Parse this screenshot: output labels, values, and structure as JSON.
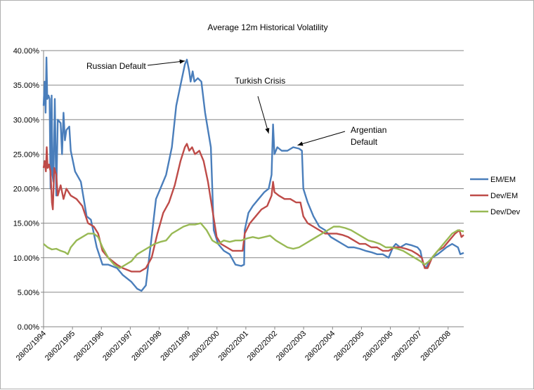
{
  "chart_data": {
    "type": "line",
    "title": "Average 12m Historical Volatility",
    "xlabel": "",
    "ylabel": "",
    "ylim": [
      0,
      40
    ],
    "yticks": [
      "0.00%",
      "5.00%",
      "10.00%",
      "15.00%",
      "20.00%",
      "25.00%",
      "30.00%",
      "35.00%",
      "40.00%"
    ],
    "xticks": [
      "28/02/1994",
      "28/02/1995",
      "28/02/1996",
      "28/02/1997",
      "28/02/1998",
      "28/02/1999",
      "28/02/2000",
      "28/02/2001",
      "28/02/2002",
      "28/02/2003",
      "28/02/2004",
      "28/02/2005",
      "28/02/2006",
      "28/02/2007",
      "28/02/2008"
    ],
    "x_range": [
      1994.16,
      2008.7
    ],
    "grid": "horizontal",
    "legend_position": "right",
    "series": [
      {
        "name": "EM/EM",
        "color": "#4a7ebb",
        "points": [
          [
            1994.16,
            32.0
          ],
          [
            1994.2,
            35.5
          ],
          [
            1994.23,
            31.0
          ],
          [
            1994.26,
            39.0
          ],
          [
            1994.29,
            33.0
          ],
          [
            1994.33,
            33.5
          ],
          [
            1994.37,
            33.0
          ],
          [
            1994.4,
            20.0
          ],
          [
            1994.44,
            33.5
          ],
          [
            1994.47,
            22.0
          ],
          [
            1994.5,
            21.0
          ],
          [
            1994.55,
            33.0
          ],
          [
            1994.6,
            19.0
          ],
          [
            1994.65,
            30.0
          ],
          [
            1994.75,
            29.5
          ],
          [
            1994.8,
            25.0
          ],
          [
            1994.85,
            31.0
          ],
          [
            1994.9,
            27.0
          ],
          [
            1994.95,
            28.5
          ],
          [
            1995.05,
            29.0
          ],
          [
            1995.1,
            25.5
          ],
          [
            1995.25,
            22.5
          ],
          [
            1995.45,
            21.0
          ],
          [
            1995.65,
            16.0
          ],
          [
            1995.8,
            15.5
          ],
          [
            1996.0,
            11.5
          ],
          [
            1996.2,
            9.0
          ],
          [
            1996.4,
            9.0
          ],
          [
            1996.7,
            8.5
          ],
          [
            1996.9,
            7.5
          ],
          [
            1997.2,
            6.5
          ],
          [
            1997.4,
            5.5
          ],
          [
            1997.55,
            5.2
          ],
          [
            1997.7,
            6.0
          ],
          [
            1997.9,
            13.0
          ],
          [
            1998.05,
            18.5
          ],
          [
            1998.2,
            20.0
          ],
          [
            1998.4,
            22.0
          ],
          [
            1998.6,
            26.0
          ],
          [
            1998.75,
            32.0
          ],
          [
            1998.9,
            35.0
          ],
          [
            1999.05,
            38.0
          ],
          [
            1999.12,
            38.7
          ],
          [
            1999.2,
            37.0
          ],
          [
            1999.25,
            35.5
          ],
          [
            1999.32,
            37.0
          ],
          [
            1999.38,
            35.5
          ],
          [
            1999.5,
            36.0
          ],
          [
            1999.62,
            35.5
          ],
          [
            1999.75,
            31.0
          ],
          [
            1999.95,
            26.0
          ],
          [
            2000.05,
            14.0
          ],
          [
            2000.2,
            12.0
          ],
          [
            2000.4,
            11.0
          ],
          [
            2000.6,
            10.5
          ],
          [
            2000.8,
            9.0
          ],
          [
            2001.0,
            8.8
          ],
          [
            2001.1,
            9.0
          ],
          [
            2001.12,
            14.0
          ],
          [
            2001.25,
            16.5
          ],
          [
            2001.4,
            17.5
          ],
          [
            2001.6,
            18.5
          ],
          [
            2001.8,
            19.5
          ],
          [
            2001.95,
            20.0
          ],
          [
            2002.05,
            22.0
          ],
          [
            2002.1,
            29.3
          ],
          [
            2002.15,
            25.0
          ],
          [
            2002.25,
            26.0
          ],
          [
            2002.4,
            25.5
          ],
          [
            2002.6,
            25.5
          ],
          [
            2002.8,
            26.0
          ],
          [
            2003.0,
            25.8
          ],
          [
            2003.1,
            25.5
          ],
          [
            2003.15,
            20.0
          ],
          [
            2003.3,
            18.0
          ],
          [
            2003.5,
            16.0
          ],
          [
            2003.7,
            14.5
          ],
          [
            2003.9,
            14.0
          ],
          [
            2004.1,
            13.0
          ],
          [
            2004.3,
            12.5
          ],
          [
            2004.5,
            12.0
          ],
          [
            2004.7,
            11.5
          ],
          [
            2004.9,
            11.5
          ],
          [
            2005.1,
            11.3
          ],
          [
            2005.3,
            11.0
          ],
          [
            2005.5,
            10.8
          ],
          [
            2005.7,
            10.5
          ],
          [
            2005.9,
            10.5
          ],
          [
            2006.1,
            10.0
          ],
          [
            2006.25,
            11.5
          ],
          [
            2006.35,
            12.0
          ],
          [
            2006.5,
            11.5
          ],
          [
            2006.7,
            12.0
          ],
          [
            2006.9,
            11.8
          ],
          [
            2007.1,
            11.5
          ],
          [
            2007.2,
            11.0
          ],
          [
            2007.3,
            9.0
          ],
          [
            2007.4,
            8.5
          ],
          [
            2007.5,
            9.5
          ],
          [
            2007.6,
            10.0
          ],
          [
            2007.8,
            10.5
          ],
          [
            2007.95,
            11.0
          ],
          [
            2008.1,
            11.5
          ],
          [
            2008.3,
            12.0
          ],
          [
            2008.5,
            11.5
          ],
          [
            2008.58,
            10.5
          ],
          [
            2008.7,
            10.7
          ]
        ]
      },
      {
        "name": "Dev/EM",
        "color": "#be4b48",
        "points": [
          [
            1994.16,
            23.0
          ],
          [
            1994.2,
            24.0
          ],
          [
            1994.24,
            22.5
          ],
          [
            1994.27,
            26.0
          ],
          [
            1994.3,
            23.0
          ],
          [
            1994.35,
            23.5
          ],
          [
            1994.4,
            22.5
          ],
          [
            1994.45,
            18.0
          ],
          [
            1994.48,
            17.0
          ],
          [
            1994.53,
            23.0
          ],
          [
            1994.6,
            22.0
          ],
          [
            1994.65,
            19.0
          ],
          [
            1994.75,
            20.5
          ],
          [
            1994.85,
            18.5
          ],
          [
            1994.95,
            20.0
          ],
          [
            1995.1,
            19.0
          ],
          [
            1995.3,
            18.5
          ],
          [
            1995.5,
            17.5
          ],
          [
            1995.7,
            15.0
          ],
          [
            1995.9,
            14.5
          ],
          [
            1996.05,
            13.5
          ],
          [
            1996.2,
            11.0
          ],
          [
            1996.4,
            10.0
          ],
          [
            1996.7,
            9.0
          ],
          [
            1996.9,
            8.5
          ],
          [
            1997.2,
            8.0
          ],
          [
            1997.5,
            8.0
          ],
          [
            1997.7,
            8.5
          ],
          [
            1997.9,
            10.0
          ],
          [
            1998.1,
            13.5
          ],
          [
            1998.3,
            16.5
          ],
          [
            1998.5,
            18.0
          ],
          [
            1998.7,
            20.5
          ],
          [
            1998.9,
            24.0
          ],
          [
            1999.05,
            26.0
          ],
          [
            1999.12,
            26.5
          ],
          [
            1999.2,
            25.5
          ],
          [
            1999.3,
            26.0
          ],
          [
            1999.4,
            25.0
          ],
          [
            1999.55,
            25.5
          ],
          [
            1999.7,
            24.0
          ],
          [
            1999.85,
            21.0
          ],
          [
            2000.0,
            17.0
          ],
          [
            2000.15,
            13.0
          ],
          [
            2000.3,
            12.0
          ],
          [
            2000.5,
            11.5
          ],
          [
            2000.7,
            11.0
          ],
          [
            2000.9,
            11.0
          ],
          [
            2001.05,
            11.0
          ],
          [
            2001.12,
            13.5
          ],
          [
            2001.3,
            15.0
          ],
          [
            2001.5,
            16.0
          ],
          [
            2001.7,
            17.0
          ],
          [
            2001.9,
            17.5
          ],
          [
            2002.05,
            19.0
          ],
          [
            2002.1,
            21.0
          ],
          [
            2002.15,
            19.5
          ],
          [
            2002.3,
            19.0
          ],
          [
            2002.5,
            18.5
          ],
          [
            2002.7,
            18.5
          ],
          [
            2002.9,
            18.0
          ],
          [
            2003.05,
            18.0
          ],
          [
            2003.15,
            16.0
          ],
          [
            2003.3,
            15.0
          ],
          [
            2003.5,
            14.5
          ],
          [
            2003.7,
            14.0
          ],
          [
            2003.9,
            13.5
          ],
          [
            2004.1,
            13.5
          ],
          [
            2004.3,
            13.5
          ],
          [
            2004.5,
            13.3
          ],
          [
            2004.7,
            13.0
          ],
          [
            2004.9,
            12.5
          ],
          [
            2005.1,
            12.0
          ],
          [
            2005.3,
            12.0
          ],
          [
            2005.5,
            11.5
          ],
          [
            2005.7,
            11.5
          ],
          [
            2005.9,
            11.0
          ],
          [
            2006.1,
            11.0
          ],
          [
            2006.3,
            11.5
          ],
          [
            2006.5,
            11.5
          ],
          [
            2006.7,
            11.3
          ],
          [
            2006.9,
            11.0
          ],
          [
            2007.1,
            10.5
          ],
          [
            2007.25,
            10.0
          ],
          [
            2007.35,
            8.5
          ],
          [
            2007.45,
            8.5
          ],
          [
            2007.6,
            10.0
          ],
          [
            2007.8,
            11.0
          ],
          [
            2008.0,
            11.5
          ],
          [
            2008.2,
            12.5
          ],
          [
            2008.4,
            13.5
          ],
          [
            2008.55,
            14.0
          ],
          [
            2008.62,
            13.0
          ],
          [
            2008.7,
            13.3
          ]
        ]
      },
      {
        "name": "Dev/Dev",
        "color": "#98b954",
        "points": [
          [
            1994.16,
            12.0
          ],
          [
            1994.3,
            11.5
          ],
          [
            1994.45,
            11.2
          ],
          [
            1994.6,
            11.3
          ],
          [
            1994.75,
            11.0
          ],
          [
            1994.9,
            10.8
          ],
          [
            1995.0,
            10.5
          ],
          [
            1995.1,
            11.5
          ],
          [
            1995.3,
            12.5
          ],
          [
            1995.5,
            13.0
          ],
          [
            1995.7,
            13.5
          ],
          [
            1995.9,
            13.5
          ],
          [
            1996.05,
            13.0
          ],
          [
            1996.2,
            11.5
          ],
          [
            1996.4,
            10.0
          ],
          [
            1996.6,
            9.0
          ],
          [
            1996.8,
            8.5
          ],
          [
            1997.0,
            9.0
          ],
          [
            1997.2,
            9.5
          ],
          [
            1997.4,
            10.5
          ],
          [
            1997.6,
            11.0
          ],
          [
            1997.8,
            11.5
          ],
          [
            1998.0,
            12.0
          ],
          [
            1998.2,
            12.3
          ],
          [
            1998.4,
            12.5
          ],
          [
            1998.6,
            13.5
          ],
          [
            1998.8,
            14.0
          ],
          [
            1999.0,
            14.5
          ],
          [
            1999.2,
            14.8
          ],
          [
            1999.4,
            14.8
          ],
          [
            1999.6,
            15.0
          ],
          [
            1999.8,
            14.0
          ],
          [
            2000.0,
            12.5
          ],
          [
            2000.2,
            12.0
          ],
          [
            2000.4,
            12.5
          ],
          [
            2000.6,
            12.3
          ],
          [
            2000.8,
            12.5
          ],
          [
            2001.0,
            12.5
          ],
          [
            2001.2,
            12.8
          ],
          [
            2001.4,
            13.0
          ],
          [
            2001.6,
            12.8
          ],
          [
            2001.8,
            13.0
          ],
          [
            2002.0,
            13.2
          ],
          [
            2002.2,
            12.5
          ],
          [
            2002.4,
            12.0
          ],
          [
            2002.6,
            11.5
          ],
          [
            2002.8,
            11.3
          ],
          [
            2003.0,
            11.5
          ],
          [
            2003.2,
            12.0
          ],
          [
            2003.4,
            12.5
          ],
          [
            2003.6,
            13.0
          ],
          [
            2003.8,
            13.5
          ],
          [
            2004.0,
            14.0
          ],
          [
            2004.2,
            14.5
          ],
          [
            2004.4,
            14.5
          ],
          [
            2004.6,
            14.3
          ],
          [
            2004.8,
            14.0
          ],
          [
            2005.0,
            13.5
          ],
          [
            2005.2,
            13.0
          ],
          [
            2005.4,
            12.5
          ],
          [
            2005.6,
            12.3
          ],
          [
            2005.8,
            12.0
          ],
          [
            2006.0,
            11.5
          ],
          [
            2006.2,
            11.5
          ],
          [
            2006.4,
            11.3
          ],
          [
            2006.6,
            11.0
          ],
          [
            2006.8,
            10.5
          ],
          [
            2007.0,
            10.0
          ],
          [
            2007.2,
            9.5
          ],
          [
            2007.35,
            9.0
          ],
          [
            2007.5,
            9.5
          ],
          [
            2007.7,
            10.5
          ],
          [
            2007.9,
            11.5
          ],
          [
            2008.1,
            12.5
          ],
          [
            2008.3,
            13.5
          ],
          [
            2008.5,
            14.0
          ],
          [
            2008.7,
            13.8
          ]
        ]
      }
    ],
    "annotations": [
      {
        "id": "russian",
        "lines": [
          "Russian Default"
        ],
        "arrow_to": [
          1999.05,
          38.5
        ]
      },
      {
        "id": "turkish",
        "lines": [
          "Turkish Crisis"
        ],
        "arrow_to": [
          2001.95,
          28.0
        ]
      },
      {
        "id": "argentian",
        "lines": [
          "Argentian",
          "Default"
        ],
        "arrow_to": [
          2002.95,
          26.3
        ]
      }
    ]
  }
}
